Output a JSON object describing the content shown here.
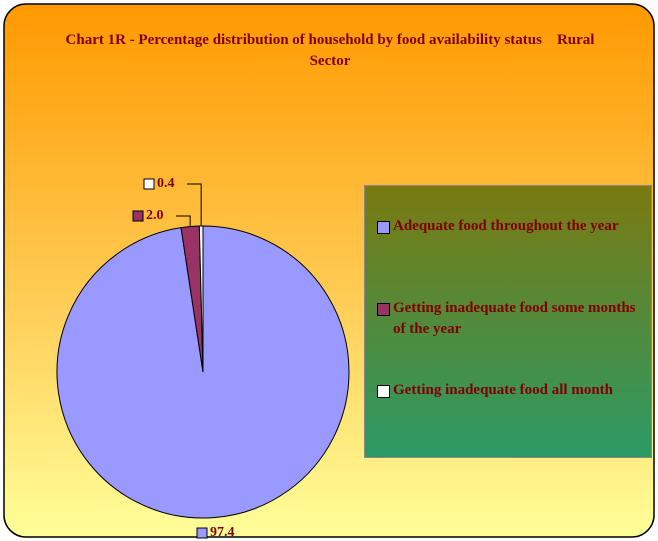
{
  "chart_data": {
    "type": "pie",
    "title": "Chart 1R - Percentage distribution of household by food availability status    Rural Sector",
    "categories": [
      "Adequate food throughout the year",
      "Getting inadequate  food some months of the year",
      "Getting inadequate food all month"
    ],
    "values": [
      97.4,
      2.0,
      0.4
    ],
    "value_labels": [
      "97.4",
      "2.0",
      "0.4"
    ],
    "colors": [
      "#9999ff",
      "#993366",
      "#ffffff"
    ],
    "legend": "right"
  }
}
